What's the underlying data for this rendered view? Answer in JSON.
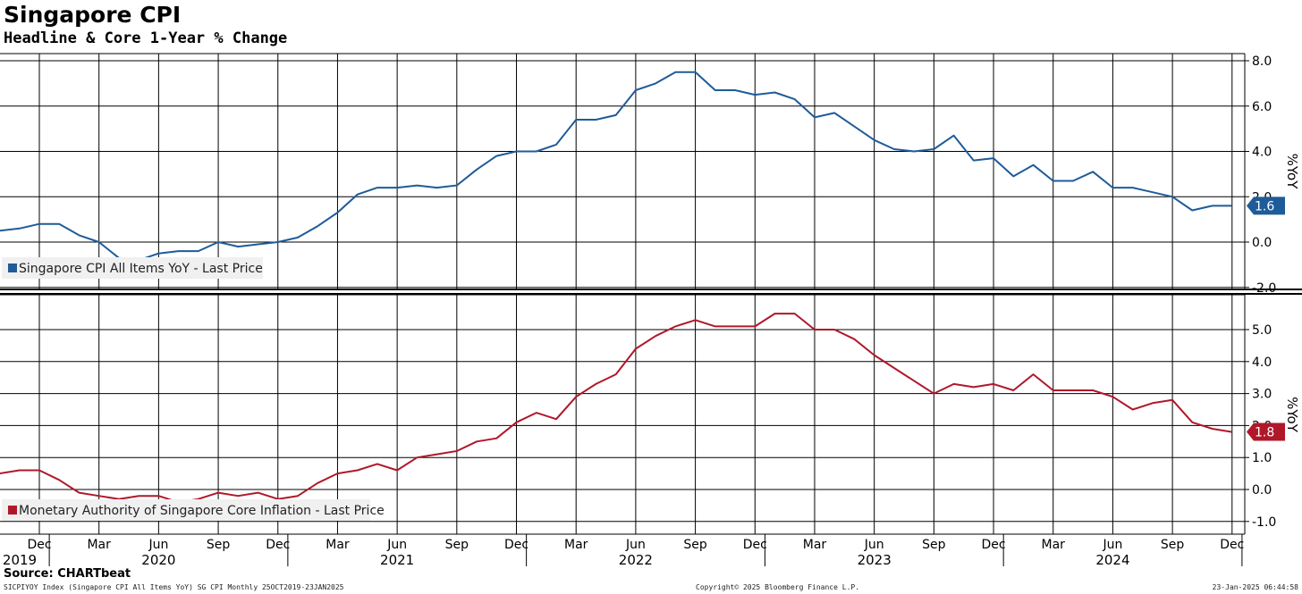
{
  "title": "Singapore CPI",
  "subtitle": "Headline & Core 1-Year % Change",
  "source": "Source: CHARTbeat",
  "footer": {
    "left": "SICPIYOY Index (Singapore CPI All Items YoY) SG CPI  Monthly 25OCT2019-23JAN2025",
    "center": "Copyright© 2025 Bloomberg Finance L.P.",
    "right": "23-Jan-2025 06:44:58"
  },
  "colors": {
    "headline": "#1f5b99",
    "core": "#b0182a"
  },
  "x_axis": {
    "months": [
      {
        "label": "Dec",
        "date": "2019-12"
      },
      {
        "label": "Mar",
        "date": "2020-03"
      },
      {
        "label": "Jun",
        "date": "2020-06"
      },
      {
        "label": "Sep",
        "date": "2020-09"
      },
      {
        "label": "Dec",
        "date": "2020-12"
      },
      {
        "label": "Mar",
        "date": "2021-03"
      },
      {
        "label": "Jun",
        "date": "2021-06"
      },
      {
        "label": "Sep",
        "date": "2021-09"
      },
      {
        "label": "Dec",
        "date": "2021-12"
      },
      {
        "label": "Mar",
        "date": "2022-03"
      },
      {
        "label": "Jun",
        "date": "2022-06"
      },
      {
        "label": "Sep",
        "date": "2022-09"
      },
      {
        "label": "Dec",
        "date": "2022-12"
      },
      {
        "label": "Mar",
        "date": "2023-03"
      },
      {
        "label": "Jun",
        "date": "2023-06"
      },
      {
        "label": "Sep",
        "date": "2023-09"
      },
      {
        "label": "Dec",
        "date": "2023-12"
      },
      {
        "label": "Mar",
        "date": "2024-03"
      },
      {
        "label": "Jun",
        "date": "2024-06"
      },
      {
        "label": "Sep",
        "date": "2024-09"
      },
      {
        "label": "Dec",
        "date": "2024-12"
      }
    ],
    "years": [
      {
        "label": "2019",
        "date": "2019-12"
      },
      {
        "label": "2020",
        "date": "2020-06"
      },
      {
        "label": "2021",
        "date": "2021-06"
      },
      {
        "label": "2022",
        "date": "2022-06"
      },
      {
        "label": "2023",
        "date": "2023-06"
      },
      {
        "label": "2024",
        "date": "2024-06"
      }
    ],
    "year_dividers": [
      "2020-01",
      "2021-01",
      "2022-01",
      "2023-01",
      "2024-01",
      "2025-01"
    ]
  },
  "chart_data": [
    {
      "type": "line",
      "ylabel": "%YoY",
      "ylim": [
        -2.0,
        8.0
      ],
      "ticks": [
        "8.0",
        "6.0",
        "4.0",
        "2.0",
        "0.0",
        "-2.0"
      ],
      "tick_values": [
        8,
        6,
        4,
        2,
        0,
        -2
      ],
      "grid": true,
      "legend_position": "bottom-left",
      "last_value_label": "1.6",
      "series": [
        {
          "name": "Singapore CPI All Items YoY - Last Price",
          "x": [
            "2019-10",
            "2019-11",
            "2019-12",
            "2020-01",
            "2020-02",
            "2020-03",
            "2020-04",
            "2020-05",
            "2020-06",
            "2020-07",
            "2020-08",
            "2020-09",
            "2020-10",
            "2020-11",
            "2020-12",
            "2021-01",
            "2021-02",
            "2021-03",
            "2021-04",
            "2021-05",
            "2021-06",
            "2021-07",
            "2021-08",
            "2021-09",
            "2021-10",
            "2021-11",
            "2021-12",
            "2022-01",
            "2022-02",
            "2022-03",
            "2022-04",
            "2022-05",
            "2022-06",
            "2022-07",
            "2022-08",
            "2022-09",
            "2022-10",
            "2022-11",
            "2022-12",
            "2023-01",
            "2023-02",
            "2023-03",
            "2023-04",
            "2023-05",
            "2023-06",
            "2023-07",
            "2023-08",
            "2023-09",
            "2023-10",
            "2023-11",
            "2023-12",
            "2024-01",
            "2024-02",
            "2024-03",
            "2024-04",
            "2024-05",
            "2024-06",
            "2024-07",
            "2024-08",
            "2024-09",
            "2024-10",
            "2024-11",
            "2024-12"
          ],
          "values": [
            0.5,
            0.6,
            0.8,
            0.8,
            0.3,
            0.0,
            -0.7,
            -0.8,
            -0.5,
            -0.4,
            -0.4,
            0.0,
            -0.2,
            -0.1,
            0.0,
            0.2,
            0.7,
            1.3,
            2.1,
            2.4,
            2.4,
            2.5,
            2.4,
            2.5,
            3.2,
            3.8,
            4.0,
            4.0,
            4.3,
            5.4,
            5.4,
            5.6,
            6.7,
            7.0,
            7.5,
            7.5,
            6.7,
            6.7,
            6.5,
            6.6,
            6.3,
            5.5,
            5.7,
            5.1,
            4.5,
            4.1,
            4.0,
            4.1,
            4.7,
            3.6,
            3.7,
            2.9,
            3.4,
            2.7,
            2.7,
            3.1,
            2.4,
            2.4,
            2.2,
            2.0,
            1.4,
            1.6,
            1.6
          ]
        }
      ]
    },
    {
      "type": "line",
      "ylabel": "%YoY",
      "ylim": [
        -1.0,
        5.0
      ],
      "ticks": [
        "5.0",
        "4.0",
        "3.0",
        "2.0",
        "1.0",
        "0.0",
        "-1.0"
      ],
      "tick_values": [
        5,
        4,
        3,
        2,
        1,
        0,
        -1
      ],
      "grid": true,
      "legend_position": "bottom-left",
      "last_value_label": "1.8",
      "series": [
        {
          "name": "Monetary Authority of Singapore Core Inflation - Last Price",
          "x": [
            "2019-10",
            "2019-11",
            "2019-12",
            "2020-01",
            "2020-02",
            "2020-03",
            "2020-04",
            "2020-05",
            "2020-06",
            "2020-07",
            "2020-08",
            "2020-09",
            "2020-10",
            "2020-11",
            "2020-12",
            "2021-01",
            "2021-02",
            "2021-03",
            "2021-04",
            "2021-05",
            "2021-06",
            "2021-07",
            "2021-08",
            "2021-09",
            "2021-10",
            "2021-11",
            "2021-12",
            "2022-01",
            "2022-02",
            "2022-03",
            "2022-04",
            "2022-05",
            "2022-06",
            "2022-07",
            "2022-08",
            "2022-09",
            "2022-10",
            "2022-11",
            "2022-12",
            "2023-01",
            "2023-02",
            "2023-03",
            "2023-04",
            "2023-05",
            "2023-06",
            "2023-07",
            "2023-08",
            "2023-09",
            "2023-10",
            "2023-11",
            "2023-12",
            "2024-01",
            "2024-02",
            "2024-03",
            "2024-04",
            "2024-05",
            "2024-06",
            "2024-07",
            "2024-08",
            "2024-09",
            "2024-10",
            "2024-11",
            "2024-12"
          ],
          "values": [
            0.5,
            0.6,
            0.6,
            0.3,
            -0.1,
            -0.2,
            -0.3,
            -0.2,
            -0.2,
            -0.4,
            -0.3,
            -0.1,
            -0.2,
            -0.1,
            -0.3,
            -0.2,
            0.2,
            0.5,
            0.6,
            0.8,
            0.6,
            1.0,
            1.1,
            1.2,
            1.5,
            1.6,
            2.1,
            2.4,
            2.2,
            2.9,
            3.3,
            3.6,
            4.4,
            4.8,
            5.1,
            5.3,
            5.1,
            5.1,
            5.1,
            5.5,
            5.5,
            5.0,
            5.0,
            4.7,
            4.2,
            3.8,
            3.4,
            3.0,
            3.3,
            3.2,
            3.3,
            3.1,
            3.6,
            3.1,
            3.1,
            3.1,
            2.9,
            2.5,
            2.7,
            2.8,
            2.1,
            1.9,
            1.8
          ]
        }
      ]
    }
  ]
}
